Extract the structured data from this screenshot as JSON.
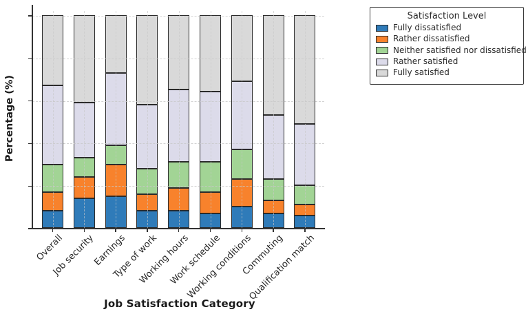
{
  "chart_data": {
    "type": "bar",
    "stacked": true,
    "orientation": "vertical",
    "xlabel": "Job Satisfaction Category",
    "ylabel": "Percentage (%)",
    "ylim": [
      0,
      100
    ],
    "yticks": [
      0,
      20,
      40,
      60,
      80,
      100
    ],
    "grid": true,
    "categories": [
      "Overall",
      "Job security",
      "Earnings",
      "Type of work",
      "Working hours",
      "Work schedule",
      "Working conditions",
      "Commuting",
      "Qualification match"
    ],
    "series": [
      {
        "name": "Fully dissatisfied",
        "color": "#2f7bb9",
        "values": [
          8,
          14,
          15,
          8,
          8,
          7,
          10,
          7,
          6
        ]
      },
      {
        "name": "Rather dissatisfied",
        "color": "#f8822c",
        "values": [
          9,
          10,
          15,
          8,
          11,
          10,
          13,
          6,
          5
        ]
      },
      {
        "name": "Neither satisfied nor dissatisfied",
        "color": "#a2d495",
        "values": [
          13,
          9,
          9,
          12,
          12,
          14,
          14,
          10,
          9
        ]
      },
      {
        "name": "Rather satisfied",
        "color": "#dcdbea",
        "values": [
          37,
          26,
          34,
          30,
          34,
          33,
          32,
          30,
          29
        ]
      },
      {
        "name": "Fully satisfied",
        "color": "#d9d9d9",
        "values": [
          33,
          41,
          27,
          42,
          35,
          36,
          31,
          47,
          51
        ]
      }
    ],
    "legend": {
      "title": "Satisfaction Level",
      "position": "outside-upper-right"
    },
    "bar_edge_color": "#2b2b2b"
  }
}
